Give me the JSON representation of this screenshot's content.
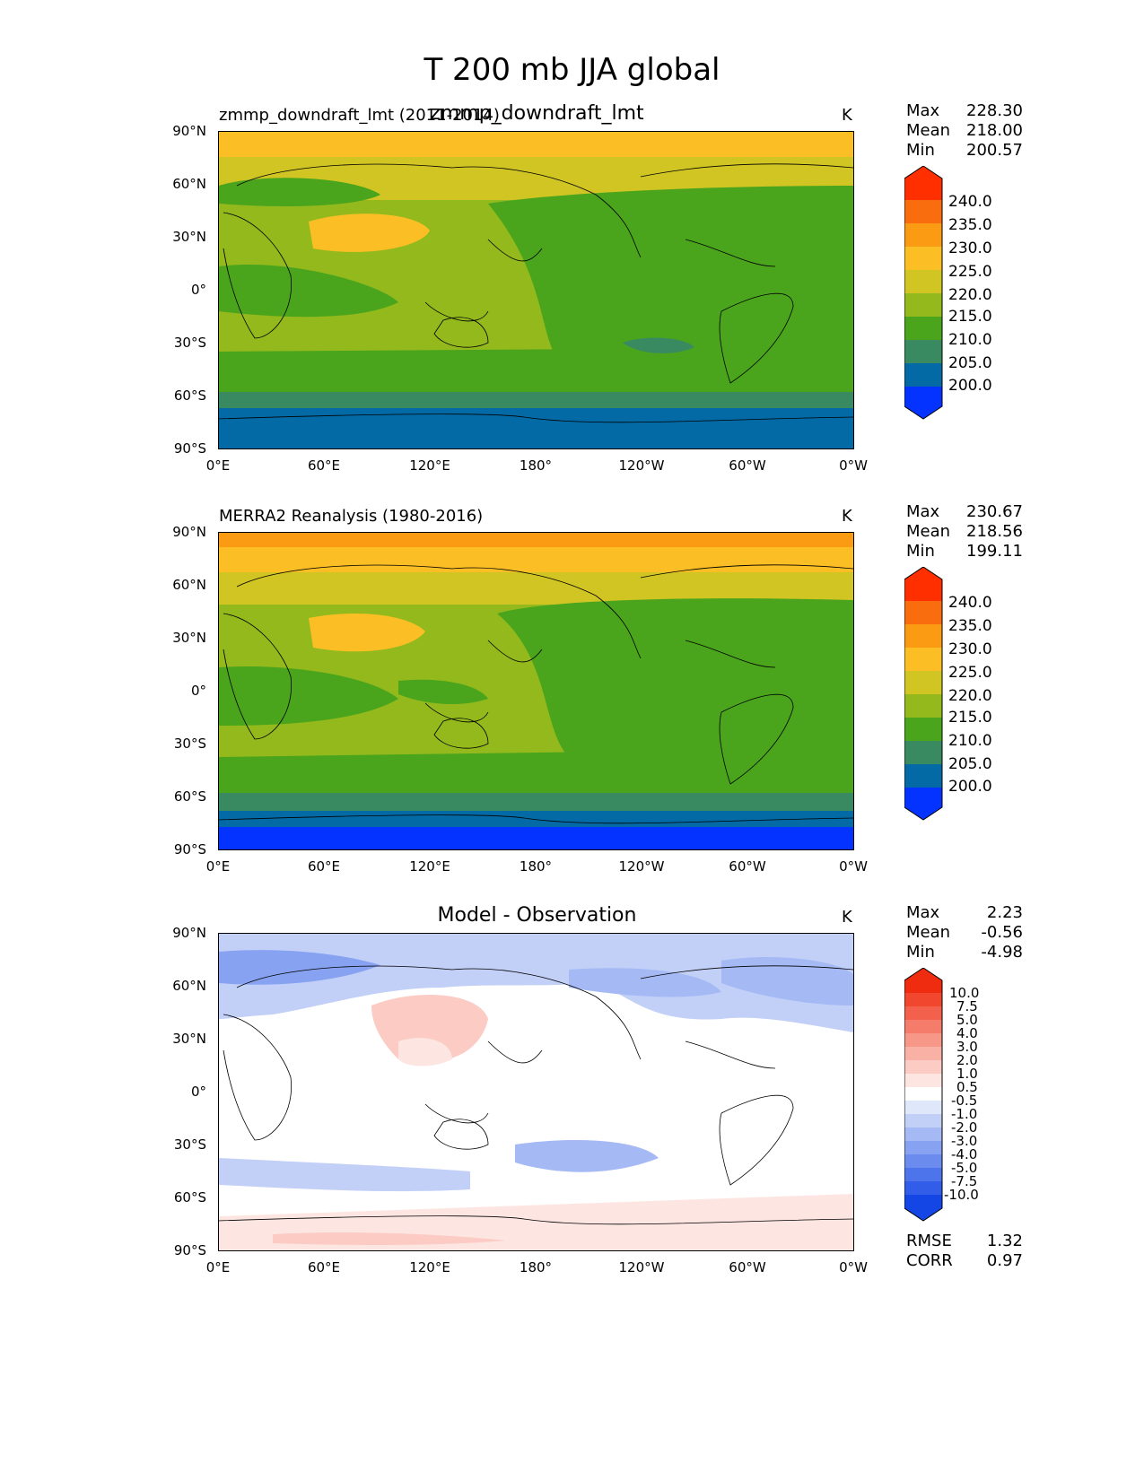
{
  "figure": {
    "title": "T 200 mb JJA global"
  },
  "axes": {
    "y_ticks": [
      "90°N",
      "60°N",
      "30°N",
      "0°",
      "30°S",
      "60°S",
      "90°S"
    ],
    "x_ticks": [
      "0°E",
      "60°E",
      "120°E",
      "180°",
      "120°W",
      "60°W",
      "0°W"
    ]
  },
  "panels": [
    {
      "id": "test",
      "left_title": "zmmp_downdraft_lmt (2011-2014)",
      "center_title": "zmmp_downdraft_lmt",
      "units": "K",
      "stats": [
        {
          "label": "Max",
          "value": "228.30"
        },
        {
          "label": "Mean",
          "value": "218.00"
        },
        {
          "label": "Min",
          "value": "200.57"
        }
      ],
      "colorbar": [
        "240.0",
        "235.0",
        "230.0",
        "225.0",
        "220.0",
        "215.0",
        "210.0",
        "205.0",
        "200.0"
      ]
    },
    {
      "id": "reference",
      "left_title": "MERRA2 Reanalysis (1980-2016)",
      "center_title": "",
      "units": "K",
      "stats": [
        {
          "label": "Max",
          "value": "230.67"
        },
        {
          "label": "Mean",
          "value": "218.56"
        },
        {
          "label": "Min",
          "value": "199.11"
        }
      ],
      "colorbar": [
        "240.0",
        "235.0",
        "230.0",
        "225.0",
        "220.0",
        "215.0",
        "210.0",
        "205.0",
        "200.0"
      ]
    },
    {
      "id": "difference",
      "left_title": "",
      "center_title": "Model - Observation",
      "units": "K",
      "stats": [
        {
          "label": "Max",
          "value": "2.23"
        },
        {
          "label": "Mean",
          "value": "-0.56"
        },
        {
          "label": "Min",
          "value": "-4.98"
        }
      ],
      "colorbar": [
        "10.0",
        "7.5",
        "5.0",
        "4.0",
        "3.0",
        "2.0",
        "1.0",
        "0.5",
        "-0.5",
        "-1.0",
        "-2.0",
        "-3.0",
        "-4.0",
        "-5.0",
        "-7.5",
        "-10.0"
      ],
      "metrics": [
        {
          "label": "RMSE",
          "value": "1.32"
        },
        {
          "label": "CORR",
          "value": "0.97"
        }
      ]
    }
  ],
  "colors": {
    "c200": "#0433ff",
    "c205": "#036aa5",
    "c210": "#398a61",
    "c215": "#4aa51d",
    "c220": "#93b91c",
    "c225": "#d1c524",
    "c230": "#fbbf25",
    "c235": "#fb9a13",
    "c240": "#fa6d0e",
    "c245": "#ff2f00",
    "d_pos": [
      "#fde6e2",
      "#fbcbc4",
      "#f9b1a6",
      "#f79788",
      "#f57c6a",
      "#f3614c",
      "#f1472e",
      "#ef2c10"
    ],
    "d_neg": [
      "#dfe7fb",
      "#c2d0f8",
      "#a5b9f5",
      "#88a2f2",
      "#6b8bef",
      "#4e74ec",
      "#315de9",
      "#1446e6"
    ],
    "d_zero": "#ffffff"
  }
}
